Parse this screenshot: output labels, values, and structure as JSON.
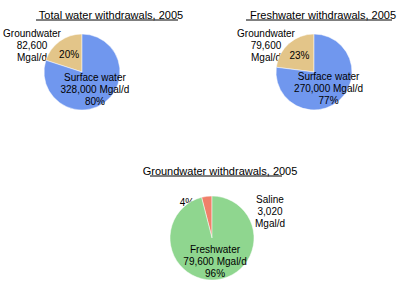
{
  "chart_data": [
    {
      "type": "pie",
      "title": "Total water withdrawals, 2005",
      "categories": [
        "Groundwater",
        "Surface water"
      ],
      "values": [
        20,
        80
      ],
      "value_labels": [
        "20%",
        "80%"
      ],
      "amounts": [
        82600,
        328000
      ],
      "amount_labels": [
        "82,600\nMgal/d",
        "328,000 Mgal/d"
      ],
      "colors": [
        "#e3c589",
        "#7097ee"
      ],
      "data_labels": true
    },
    {
      "type": "pie",
      "title": "Freshwater withdrawals, 2005",
      "categories": [
        "Groundwater",
        "Surface water"
      ],
      "values": [
        23,
        77
      ],
      "value_labels": [
        "23%",
        "77%"
      ],
      "amounts": [
        79600,
        270000
      ],
      "amount_labels": [
        "79,600\nMgal/d",
        "270,000 Mgal/d"
      ],
      "colors": [
        "#e3c589",
        "#7097ee"
      ],
      "data_labels": true
    },
    {
      "type": "pie",
      "title": "Groundwater withdrawals, 2005",
      "categories": [
        "Saline",
        "Freshwater"
      ],
      "values": [
        4,
        96
      ],
      "value_labels": [
        "4%",
        "96%"
      ],
      "amounts": [
        3020,
        79600
      ],
      "amount_labels": [
        "3,020\nMgal/d",
        "79,600 Mgal/d"
      ],
      "colors": [
        "#f0806a",
        "#8fd68f"
      ],
      "data_labels": true
    }
  ]
}
